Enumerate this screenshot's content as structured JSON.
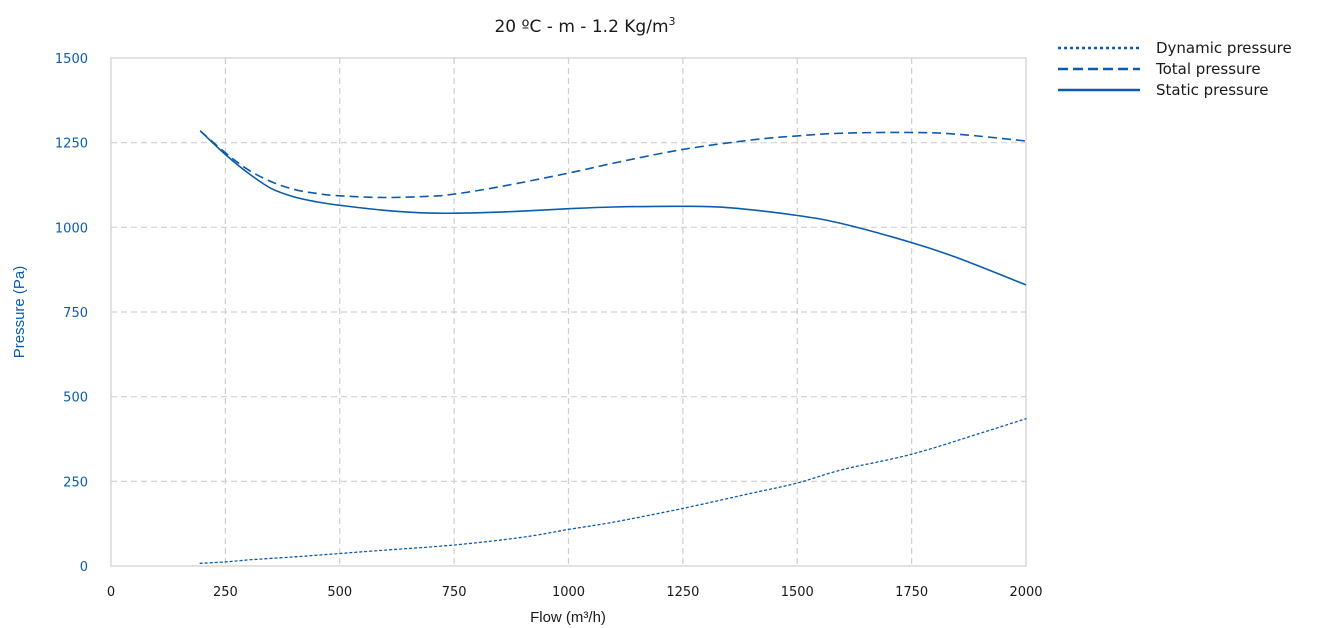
{
  "chart_data": {
    "type": "line",
    "title": {
      "main": "20 ºC - m - 1.2 Kg/m",
      "sup": "3"
    },
    "xlabel": "Flow (m³/h)",
    "ylabel": "Pressure (Pa)",
    "xlim": [
      0,
      2000
    ],
    "ylim": [
      0,
      1500
    ],
    "xticks": [
      0,
      250,
      500,
      750,
      1000,
      1250,
      1500,
      1750,
      2000
    ],
    "yticks": [
      0,
      250,
      500,
      750,
      1000,
      1250,
      1500
    ],
    "grid": true,
    "legend_position": "top-right, outside plot",
    "series": [
      {
        "name": "Dynamic pressure",
        "style": "dotted",
        "color": "#0b5cad",
        "points": [
          [
            195,
            8
          ],
          [
            250,
            12
          ],
          [
            300,
            18
          ],
          [
            400,
            27
          ],
          [
            500,
            37
          ],
          [
            600,
            47
          ],
          [
            750,
            62
          ],
          [
            900,
            85
          ],
          [
            1000,
            108
          ],
          [
            1100,
            130
          ],
          [
            1250,
            170
          ],
          [
            1400,
            215
          ],
          [
            1500,
            245
          ],
          [
            1600,
            285
          ],
          [
            1750,
            330
          ],
          [
            1900,
            392
          ],
          [
            2000,
            435
          ]
        ]
      },
      {
        "name": "Total pressure",
        "style": "dashed",
        "color": "#0b5cad",
        "points": [
          [
            195,
            1285
          ],
          [
            250,
            1220
          ],
          [
            300,
            1170
          ],
          [
            350,
            1135
          ],
          [
            400,
            1112
          ],
          [
            450,
            1100
          ],
          [
            500,
            1093
          ],
          [
            600,
            1088
          ],
          [
            700,
            1092
          ],
          [
            750,
            1098
          ],
          [
            850,
            1120
          ],
          [
            1000,
            1160
          ],
          [
            1100,
            1190
          ],
          [
            1250,
            1230
          ],
          [
            1400,
            1258
          ],
          [
            1500,
            1270
          ],
          [
            1600,
            1278
          ],
          [
            1750,
            1280
          ],
          [
            1850,
            1275
          ],
          [
            2000,
            1255
          ]
        ]
      },
      {
        "name": "Static pressure",
        "style": "solid",
        "color": "#0b5cad",
        "points": [
          [
            195,
            1285
          ],
          [
            250,
            1215
          ],
          [
            300,
            1160
          ],
          [
            350,
            1115
          ],
          [
            400,
            1090
          ],
          [
            450,
            1075
          ],
          [
            500,
            1065
          ],
          [
            600,
            1050
          ],
          [
            700,
            1042
          ],
          [
            800,
            1043
          ],
          [
            900,
            1048
          ],
          [
            1000,
            1055
          ],
          [
            1100,
            1060
          ],
          [
            1250,
            1062
          ],
          [
            1350,
            1058
          ],
          [
            1500,
            1035
          ],
          [
            1600,
            1010
          ],
          [
            1750,
            955
          ],
          [
            1850,
            910
          ],
          [
            2000,
            830
          ]
        ]
      }
    ]
  }
}
